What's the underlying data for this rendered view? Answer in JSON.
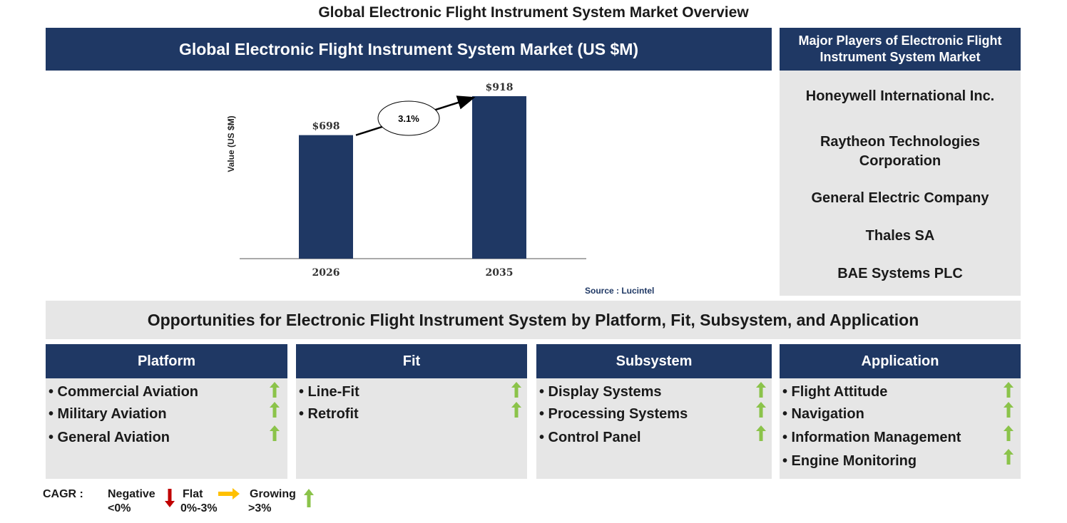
{
  "page_title": "Global Electronic Flight Instrument System Market Overview",
  "chart_panel": {
    "header": "Global Electronic Flight Instrument System Market (US $M)",
    "source": "Source : Lucintel"
  },
  "chart_data": {
    "type": "bar",
    "title": "Global Electronic Flight Instrument System Market (US $M)",
    "categories": [
      "2026",
      "2035"
    ],
    "values": [
      698,
      918
    ],
    "value_labels": [
      "$698",
      "$918"
    ],
    "ylabel": "Value (US $M)",
    "xlabel": "",
    "ylim": [
      0,
      1000
    ],
    "cagr_label": "3.1%",
    "bar_color": "#1f3864",
    "grid": false,
    "legend": "none"
  },
  "players": {
    "header": "Major Players of Electronic Flight Instrument System Market",
    "items": [
      "Honeywell International Inc.",
      "Raytheon Technologies Corporation",
      "General Electric Company",
      "Thales SA",
      "BAE Systems PLC"
    ]
  },
  "opportunities": {
    "title": "Opportunities for Electronic Flight Instrument System by Platform, Fit, Subsystem, and Application",
    "segments": [
      {
        "header": "Platform",
        "items": [
          "• Commercial Aviation",
          "• Military Aviation",
          "• General Aviation"
        ],
        "trends": [
          "growing",
          "growing",
          "growing"
        ]
      },
      {
        "header": "Fit",
        "items": [
          "• Line-Fit",
          "• Retrofit"
        ],
        "trends": [
          "growing",
          "growing"
        ]
      },
      {
        "header": "Subsystem",
        "items": [
          "• Display Systems",
          "• Processing Systems",
          "• Control Panel"
        ],
        "trends": [
          "growing",
          "growing",
          "growing"
        ]
      },
      {
        "header": "Application",
        "items": [
          "• Flight Attitude",
          "• Navigation",
          "• Information Management",
          "• Engine Monitoring"
        ],
        "trends": [
          "growing",
          "growing",
          "growing",
          "growing"
        ]
      }
    ]
  },
  "legend": {
    "cagr_label": "CAGR :",
    "negative_label": "Negative",
    "negative_range": "<0%",
    "flat_label": "Flat",
    "flat_range": "0%-3%",
    "growing_label": "Growing",
    "growing_range": ">3%"
  },
  "colors": {
    "navy": "#1f3864",
    "grey_panel": "#e6e6e6",
    "growing": "#8bc34a",
    "flat": "#ffc000",
    "negative": "#c00000"
  }
}
